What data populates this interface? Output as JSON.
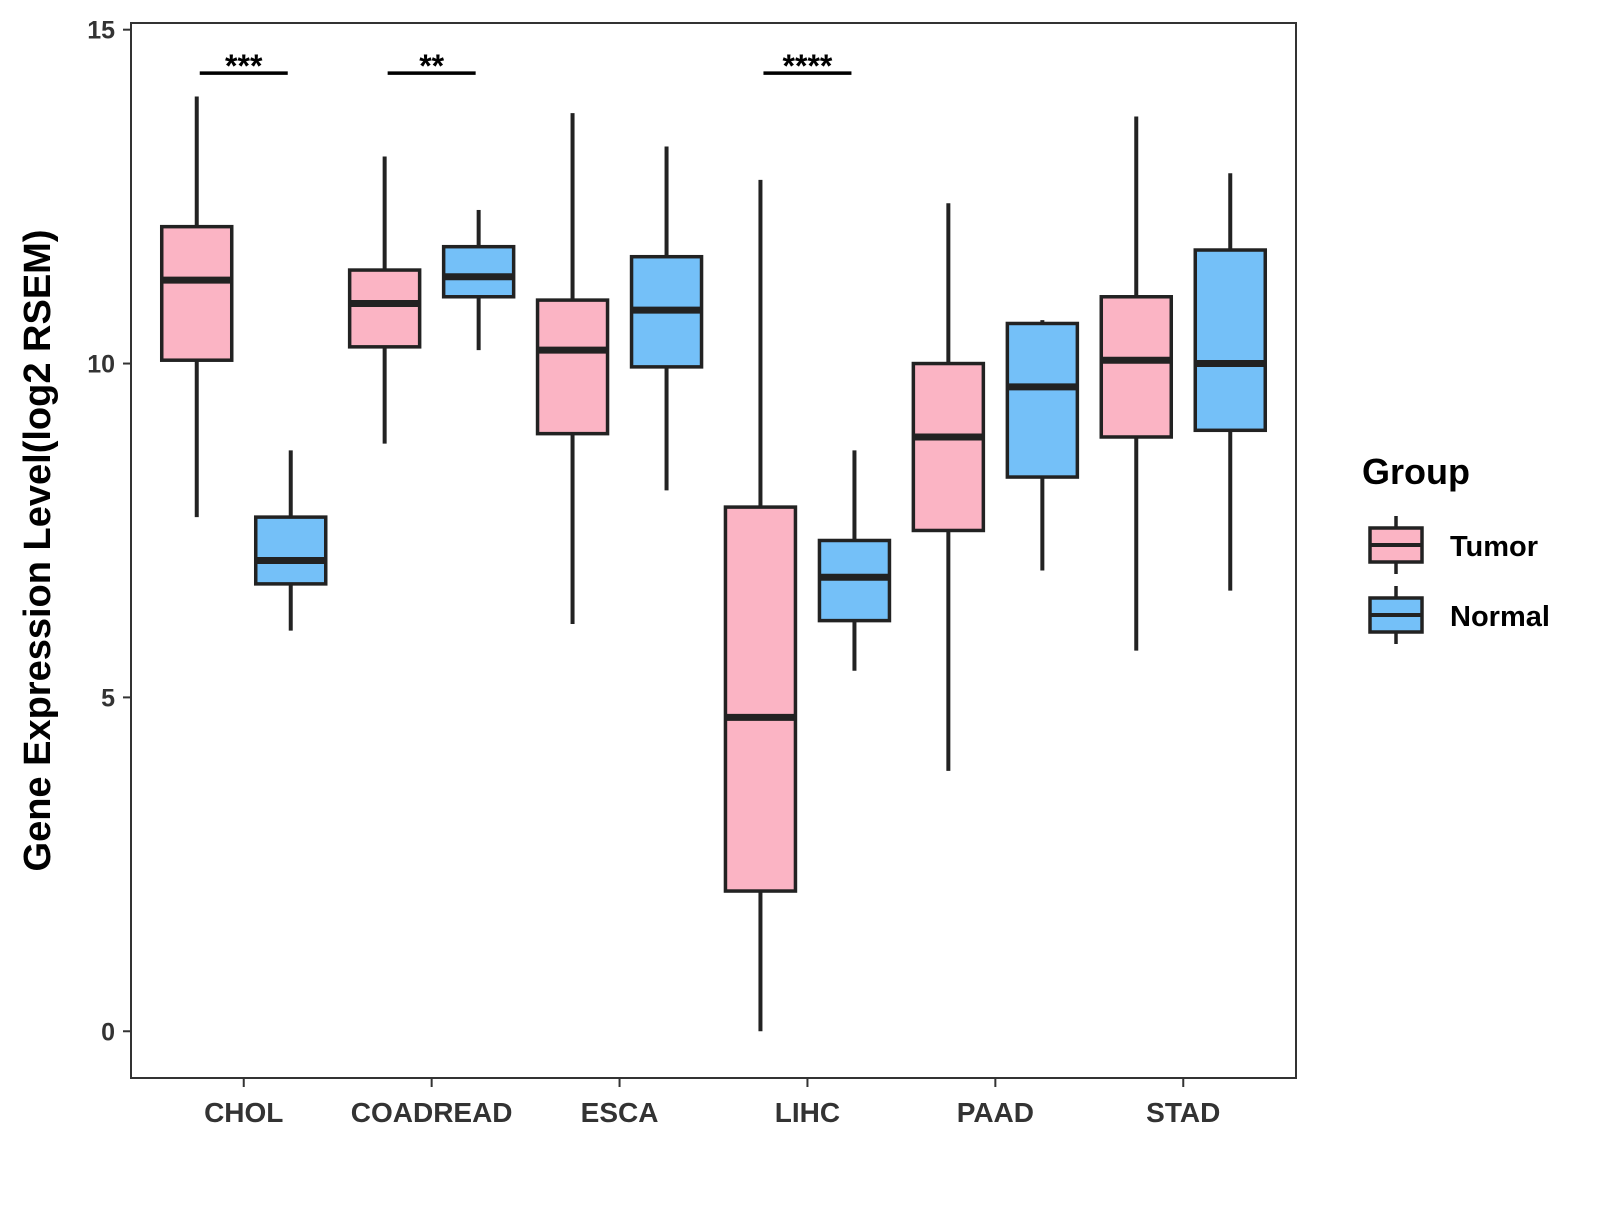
{
  "chart_data": {
    "type": "boxplot",
    "title": "",
    "xlabel": "",
    "ylabel": "Gene Expression Level(log2 RSEM)",
    "ylim": [
      -0.7,
      15.1
    ],
    "yticks": [
      0,
      5,
      10,
      15
    ],
    "grid": false,
    "categories": [
      "CHOL",
      "COADREAD",
      "ESCA",
      "LIHC",
      "PAAD",
      "STAD"
    ],
    "legend": {
      "title": "Group",
      "position": "right",
      "entries": [
        {
          "name": "Tumor",
          "color": "#FBB4C4"
        },
        {
          "name": "Normal",
          "color": "#74C0F8"
        }
      ]
    },
    "series": [
      {
        "name": "Tumor",
        "color": "#FBB4C4",
        "boxes": [
          {
            "category": "CHOL",
            "min": 7.7,
            "q1": 10.05,
            "median": 11.25,
            "q3": 12.05,
            "max": 14.0
          },
          {
            "category": "COADREAD",
            "min": 8.8,
            "q1": 10.25,
            "median": 10.9,
            "q3": 11.4,
            "max": 13.1
          },
          {
            "category": "ESCA",
            "min": 6.1,
            "q1": 8.95,
            "median": 10.2,
            "q3": 10.95,
            "max": 13.75
          },
          {
            "category": "LIHC",
            "min": 0.0,
            "q1": 2.1,
            "median": 4.7,
            "q3": 7.85,
            "max": 12.75
          },
          {
            "category": "PAAD",
            "min": 3.9,
            "q1": 7.5,
            "median": 8.9,
            "q3": 10.0,
            "max": 12.4
          },
          {
            "category": "STAD",
            "min": 5.7,
            "q1": 8.9,
            "median": 10.05,
            "q3": 11.0,
            "max": 13.7
          }
        ]
      },
      {
        "name": "Normal",
        "color": "#74C0F8",
        "boxes": [
          {
            "category": "CHOL",
            "min": 6.0,
            "q1": 6.7,
            "median": 7.05,
            "q3": 7.7,
            "max": 8.7
          },
          {
            "category": "COADREAD",
            "min": 10.2,
            "q1": 11.0,
            "median": 11.3,
            "q3": 11.75,
            "max": 12.3
          },
          {
            "category": "ESCA",
            "min": 8.1,
            "q1": 9.95,
            "median": 10.8,
            "q3": 11.6,
            "max": 13.25
          },
          {
            "category": "LIHC",
            "min": 5.4,
            "q1": 6.15,
            "median": 6.8,
            "q3": 7.35,
            "max": 8.7
          },
          {
            "category": "PAAD",
            "min": 6.9,
            "q1": 8.3,
            "median": 9.65,
            "q3": 10.6,
            "max": 10.65
          },
          {
            "category": "STAD",
            "min": 6.6,
            "q1": 9.0,
            "median": 10.0,
            "q3": 11.7,
            "max": 12.85
          }
        ]
      }
    ],
    "significance": [
      {
        "category": "CHOL",
        "label": "***",
        "y": 14.35
      },
      {
        "category": "COADREAD",
        "label": "**",
        "y": 14.35
      },
      {
        "category": "LIHC",
        "label": "****",
        "y": 14.35
      }
    ]
  }
}
